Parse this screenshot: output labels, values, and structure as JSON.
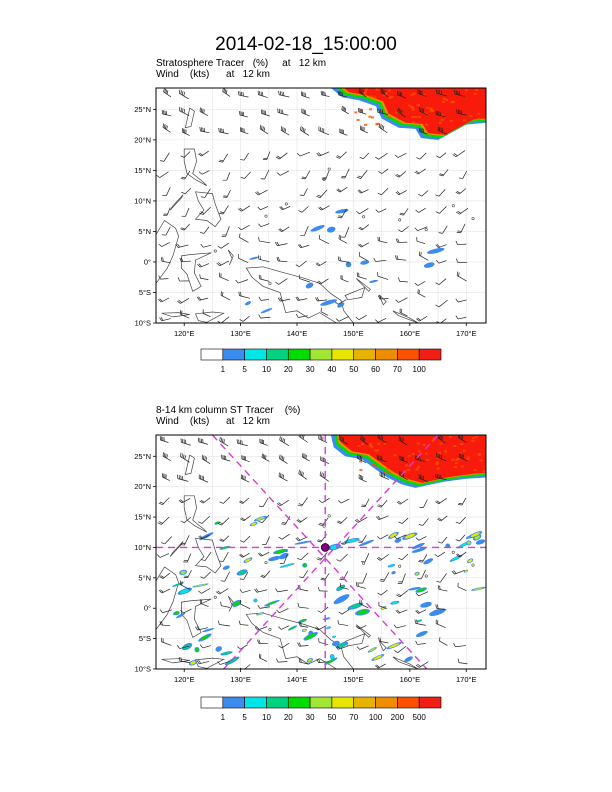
{
  "page_title": "2014-02-18_15:00:00",
  "colors": {
    "coast": "#444444",
    "wind": "#222222",
    "track": "#d83cd8",
    "grid": "#e3e3e3",
    "high_region": "#f81a0a"
  },
  "panels": [
    {
      "id": "top",
      "title_line1": "Stratosphere Tracer   (%)     at   12 km",
      "title_line2": "Wind    (kts)      at   12 km",
      "lat_labels": [
        "25°N",
        "20°N",
        "15°N",
        "10°N",
        "5°N",
        "0°",
        "5°S",
        "10°S"
      ],
      "lon_labels": [
        "120°E",
        "130°E",
        "140°E",
        "150°E",
        "160°E",
        "170°E"
      ],
      "colorbar_colors": [
        "#ffffff",
        "#3c8cf0",
        "#00e6e6",
        "#00d282",
        "#00dc00",
        "#a0e632",
        "#e6e600",
        "#e6b400",
        "#f08c00",
        "#fa5000",
        "#f01e14"
      ],
      "colorbar_labels": [
        "1",
        "5",
        "10",
        "20",
        "30",
        "40",
        "50",
        "60",
        "70",
        "100"
      ],
      "show_track": false
    },
    {
      "id": "bottom",
      "title_line1": "8-14 km column ST Tracer    (%)",
      "title_line2": "Wind    (kts)      at   12 km",
      "lat_labels": [
        "25°N",
        "20°N",
        "15°N",
        "10°N",
        "5°N",
        "0°",
        "5°S",
        "10°S"
      ],
      "lon_labels": [
        "120°E",
        "130°E",
        "140°E",
        "150°E",
        "160°E",
        "170°E"
      ],
      "colorbar_colors": [
        "#ffffff",
        "#3c8cf0",
        "#00e6e6",
        "#00d282",
        "#00dc00",
        "#a0e632",
        "#e6e600",
        "#e6b400",
        "#f08c00",
        "#fa5000",
        "#f01e14"
      ],
      "colorbar_labels": [
        "1",
        "5",
        "10",
        "20",
        "30",
        "50",
        "70",
        "100",
        "200",
        "500"
      ],
      "show_track": true
    }
  ]
}
